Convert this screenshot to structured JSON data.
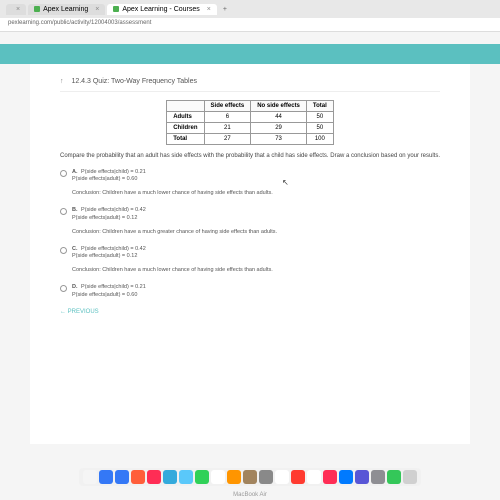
{
  "browser": {
    "tabs": [
      {
        "title": "",
        "active": false
      },
      {
        "title": "Apex Learning",
        "active": false
      },
      {
        "title": "Apex Learning - Courses",
        "active": true
      }
    ],
    "url": "pexlearning.com/public/activity/12004003/assessment",
    "new_tab": "+"
  },
  "quiz": {
    "breadcrumb": "12.4.3 Quiz: Two-Way Frequency Tables",
    "table": {
      "headers": [
        "",
        "Side effects",
        "No side effects",
        "Total"
      ],
      "rows": [
        [
          "Adults",
          "6",
          "44",
          "50"
        ],
        [
          "Children",
          "21",
          "29",
          "50"
        ],
        [
          "Total",
          "27",
          "73",
          "100"
        ]
      ]
    },
    "question": "Compare the probability that an adult has side effects with the probability that a child has side effects. Draw a conclusion based on your results.",
    "options": [
      {
        "label": "A.",
        "line1": "P(side effects|child) = 0.21",
        "line2": "P(side effects|adult) = 0.60",
        "conclusion": "Conclusion: Children have a much lower chance of having side effects than adults."
      },
      {
        "label": "B.",
        "line1": "P(side effects|child) = 0.42",
        "line2": "P(side effects|adult) = 0.12",
        "conclusion": "Conclusion: Children have a much greater chance of having side effects than adults."
      },
      {
        "label": "C.",
        "line1": "P(side effects|child) = 0.42",
        "line2": "P(side effects|adult) = 0.12",
        "conclusion": "Conclusion: Children have a much lower chance of having side effects than adults."
      },
      {
        "label": "D.",
        "line1": "P(side effects|child) = 0.21",
        "line2": "P(side effects|adult) = 0.60",
        "conclusion": ""
      }
    ],
    "prev": "← PREVIOUS"
  },
  "dock_colors": [
    "#f5f5f5",
    "#3478f6",
    "#3478f6",
    "#ff5e3a",
    "#ff2d55",
    "#34aadc",
    "#5ac8fa",
    "#30d158",
    "#ffffff",
    "#ff9500",
    "#a2845e",
    "#898989",
    "#ffffff",
    "#ff3b30",
    "#ffffff",
    "#ff2d55",
    "#007aff",
    "#5856d6",
    "#8e8e93",
    "#34c759",
    "#d0d0d0"
  ],
  "device": "MacBook Air"
}
